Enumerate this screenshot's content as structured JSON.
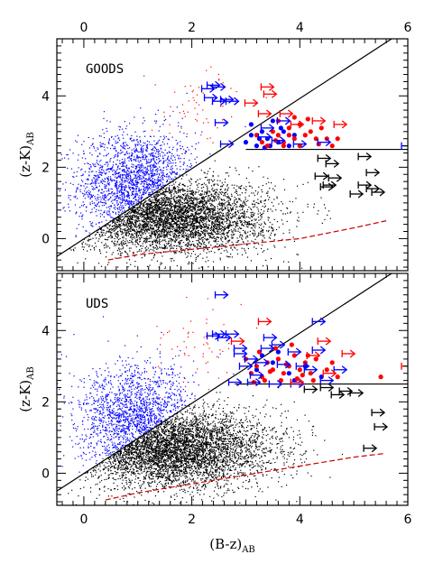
{
  "chart_data": [
    {
      "type": "scatter",
      "panel_label": "GOODS",
      "xlabel": "(B-z)",
      "xlabel_sub": "AB",
      "ylabel": "(z-K)",
      "ylabel_sub": "AB",
      "xlim": [
        -0.5,
        6
      ],
      "ylim": [
        -0.9,
        5.6
      ],
      "xticks": [
        0,
        2,
        4,
        6
      ],
      "yticks": [
        0,
        2,
        4
      ],
      "x_top_ticks": [
        0,
        2,
        4,
        6
      ],
      "diagonal_line": [
        [
          -0.5,
          -0.5
        ],
        [
          5.7,
          5.6
        ]
      ],
      "horizontal_line": {
        "y": 2.5,
        "x_range": [
          3.0,
          6.0
        ]
      },
      "clouds": [
        {
          "name": "blue",
          "color": "#0000ff",
          "n": 1700,
          "cx": 1.0,
          "cy": 1.5,
          "sx": 0.55,
          "sy": 0.75,
          "select": "above"
        },
        {
          "name": "red",
          "color": "#ff0000",
          "n": 60,
          "cx": 2.2,
          "cy": 3.6,
          "sx": 0.5,
          "sy": 0.6,
          "select": "above"
        },
        {
          "name": "black",
          "color": "#000000",
          "n": 4200,
          "cx": 1.6,
          "cy": 0.6,
          "sx": 0.9,
          "sy": 0.5,
          "select": "below"
        }
      ],
      "red_points": [
        [
          3.6,
          2.9
        ],
        [
          3.7,
          2.7
        ],
        [
          3.8,
          3.1
        ],
        [
          3.9,
          2.8
        ],
        [
          4.0,
          3.2
        ],
        [
          4.1,
          2.9
        ],
        [
          3.5,
          3.0
        ],
        [
          3.6,
          3.3
        ],
        [
          4.2,
          3.0
        ],
        [
          4.3,
          2.8
        ],
        [
          3.4,
          2.6
        ],
        [
          3.7,
          2.6
        ],
        [
          4.4,
          3.1
        ],
        [
          4.5,
          2.8
        ],
        [
          4.6,
          2.6
        ],
        [
          3.9,
          3.4
        ],
        [
          3.3,
          2.7
        ],
        [
          3.2,
          2.9
        ],
        [
          4.0,
          2.6
        ],
        [
          3.8,
          2.9
        ],
        [
          4.7,
          2.8
        ],
        [
          3.55,
          2.75
        ],
        [
          4.15,
          3.35
        ],
        [
          4.35,
          2.65
        ]
      ],
      "blue_points": [
        [
          3.0,
          2.7
        ],
        [
          3.1,
          2.9
        ],
        [
          3.2,
          2.6
        ],
        [
          3.3,
          3.0
        ],
        [
          3.4,
          2.8
        ],
        [
          3.5,
          3.3
        ],
        [
          3.6,
          2.7
        ],
        [
          3.7,
          3.0
        ],
        [
          3.8,
          2.6
        ],
        [
          3.9,
          2.9
        ],
        [
          3.1,
          3.2
        ],
        [
          3.35,
          2.55
        ],
        [
          3.65,
          3.1
        ],
        [
          3.25,
          2.8
        ],
        [
          3.45,
          2.6
        ]
      ],
      "black_arrows": [
        [
          4.45,
          2.25
        ],
        [
          4.6,
          2.1
        ],
        [
          4.4,
          1.75
        ],
        [
          4.55,
          1.5
        ],
        [
          5.2,
          2.3
        ],
        [
          5.35,
          1.85
        ],
        [
          5.2,
          1.5
        ],
        [
          5.35,
          1.4
        ],
        [
          5.05,
          1.25
        ],
        [
          5.45,
          1.3
        ],
        [
          4.65,
          1.7
        ],
        [
          4.5,
          1.45
        ]
      ],
      "blue_arrows": [
        [
          2.3,
          4.2
        ],
        [
          2.4,
          4.3
        ],
        [
          2.5,
          4.25
        ],
        [
          2.35,
          3.95
        ],
        [
          2.5,
          3.85
        ],
        [
          2.65,
          3.9
        ],
        [
          2.75,
          3.85
        ],
        [
          2.55,
          3.25
        ],
        [
          2.65,
          2.65
        ],
        [
          3.35,
          2.85
        ],
        [
          3.6,
          2.75
        ],
        [
          4.0,
          2.65
        ],
        [
          4.45,
          2.7
        ],
        [
          6.0,
          2.6
        ],
        [
          3.4,
          3.1
        ],
        [
          3.7,
          3.3
        ]
      ],
      "red_arrows": [
        [
          3.4,
          4.25
        ],
        [
          3.45,
          4.05
        ],
        [
          3.1,
          3.8
        ],
        [
          3.35,
          3.5
        ],
        [
          3.95,
          3.2
        ],
        [
          4.35,
          3.3
        ],
        [
          4.75,
          3.2
        ],
        [
          3.75,
          3.5
        ]
      ],
      "dashed_track": [
        [
          0.45,
          -0.6
        ],
        [
          1.0,
          -0.45
        ],
        [
          2.0,
          -0.3
        ],
        [
          3.0,
          -0.15
        ],
        [
          4.0,
          0.0
        ],
        [
          5.0,
          0.3
        ],
        [
          5.6,
          0.5
        ]
      ]
    },
    {
      "type": "scatter",
      "panel_label": "UDS",
      "xlabel": "(B-z)",
      "xlabel_sub": "AB",
      "ylabel": "(z-K)",
      "ylabel_sub": "AB",
      "xlim": [
        -0.5,
        6
      ],
      "ylim": [
        -0.9,
        5.6
      ],
      "xticks": [
        0,
        2,
        4,
        6
      ],
      "yticks": [
        0,
        2,
        4
      ],
      "diagonal_line": [
        [
          -0.5,
          -0.5
        ],
        [
          5.7,
          5.6
        ]
      ],
      "horizontal_line": {
        "y": 2.5,
        "x_range": [
          2.8,
          6.0
        ]
      },
      "clouds": [
        {
          "name": "blue",
          "color": "#0000ff",
          "n": 1500,
          "cx": 1.0,
          "cy": 1.5,
          "sx": 0.55,
          "sy": 0.75,
          "select": "above"
        },
        {
          "name": "red",
          "color": "#ff0000",
          "n": 60,
          "cx": 2.2,
          "cy": 3.5,
          "sx": 0.5,
          "sy": 0.6,
          "select": "above"
        },
        {
          "name": "black",
          "color": "#000000",
          "n": 4500,
          "cx": 1.6,
          "cy": 0.7,
          "sx": 0.95,
          "sy": 0.55,
          "select": "below"
        }
      ],
      "red_points": [
        [
          3.1,
          2.8
        ],
        [
          3.2,
          3.0
        ],
        [
          3.3,
          2.7
        ],
        [
          3.4,
          3.1
        ],
        [
          3.5,
          2.9
        ],
        [
          3.6,
          3.2
        ],
        [
          3.7,
          2.8
        ],
        [
          3.8,
          3.0
        ],
        [
          3.9,
          3.3
        ],
        [
          4.0,
          2.9
        ],
        [
          4.1,
          3.1
        ],
        [
          4.2,
          2.8
        ],
        [
          4.3,
          3.2
        ],
        [
          3.35,
          2.6
        ],
        [
          3.65,
          2.6
        ],
        [
          3.95,
          2.65
        ],
        [
          4.25,
          2.6
        ],
        [
          3.0,
          3.2
        ],
        [
          3.25,
          3.4
        ],
        [
          3.55,
          3.5
        ],
        [
          3.85,
          3.6
        ],
        [
          4.15,
          3.3
        ],
        [
          4.5,
          2.9
        ],
        [
          4.6,
          3.1
        ],
        [
          4.7,
          2.7
        ],
        [
          5.5,
          2.7
        ],
        [
          3.45,
          2.85
        ],
        [
          3.75,
          3.05
        ],
        [
          4.05,
          2.75
        ],
        [
          3.15,
          2.55
        ]
      ],
      "blue_points": [
        [
          3.2,
          2.9
        ],
        [
          3.5,
          3.1
        ],
        [
          3.8,
          2.8
        ],
        [
          4.1,
          3.0
        ],
        [
          3.3,
          3.3
        ],
        [
          3.9,
          2.6
        ],
        [
          3.6,
          3.4
        ],
        [
          4.4,
          2.7
        ]
      ],
      "black_arrows": [
        [
          4.5,
          2.4
        ],
        [
          4.85,
          2.3
        ],
        [
          5.05,
          2.25
        ],
        [
          5.45,
          1.7
        ],
        [
          5.5,
          1.3
        ],
        [
          5.3,
          0.7
        ],
        [
          4.2,
          2.35
        ],
        [
          4.7,
          2.2
        ]
      ],
      "blue_arrows": [
        [
          2.55,
          5.0
        ],
        [
          2.4,
          3.85
        ],
        [
          2.5,
          3.9
        ],
        [
          2.6,
          3.8
        ],
        [
          2.75,
          3.9
        ],
        [
          2.9,
          3.5
        ],
        [
          3.1,
          3.2
        ],
        [
          3.4,
          3.5
        ],
        [
          3.6,
          3.6
        ],
        [
          3.9,
          3.4
        ],
        [
          4.35,
          3.45
        ],
        [
          4.35,
          4.25
        ],
        [
          3.45,
          3.8
        ],
        [
          4.75,
          2.9
        ],
        [
          3.2,
          2.75
        ],
        [
          2.8,
          2.55
        ],
        [
          2.9,
          3.35
        ],
        [
          3.0,
          3.0
        ],
        [
          4.05,
          3.0
        ],
        [
          3.7,
          3.05
        ],
        [
          4.2,
          2.9
        ],
        [
          4.5,
          2.6
        ],
        [
          3.3,
          3.1
        ],
        [
          3.55,
          2.5
        ],
        [
          3.95,
          2.5
        ],
        [
          3.15,
          2.55
        ]
      ],
      "red_arrows": [
        [
          2.85,
          3.7
        ],
        [
          3.35,
          4.25
        ],
        [
          4.45,
          3.7
        ],
        [
          4.9,
          3.35
        ],
        [
          3.95,
          2.55
        ],
        [
          6.0,
          3.0
        ],
        [
          4.55,
          2.8
        ],
        [
          4.25,
          3.3
        ]
      ],
      "dashed_track": [
        [
          0.4,
          -0.75
        ],
        [
          1.0,
          -0.55
        ],
        [
          2.0,
          -0.3
        ],
        [
          3.0,
          -0.05
        ],
        [
          4.0,
          0.2
        ],
        [
          5.0,
          0.45
        ],
        [
          5.55,
          0.55
        ]
      ]
    }
  ]
}
